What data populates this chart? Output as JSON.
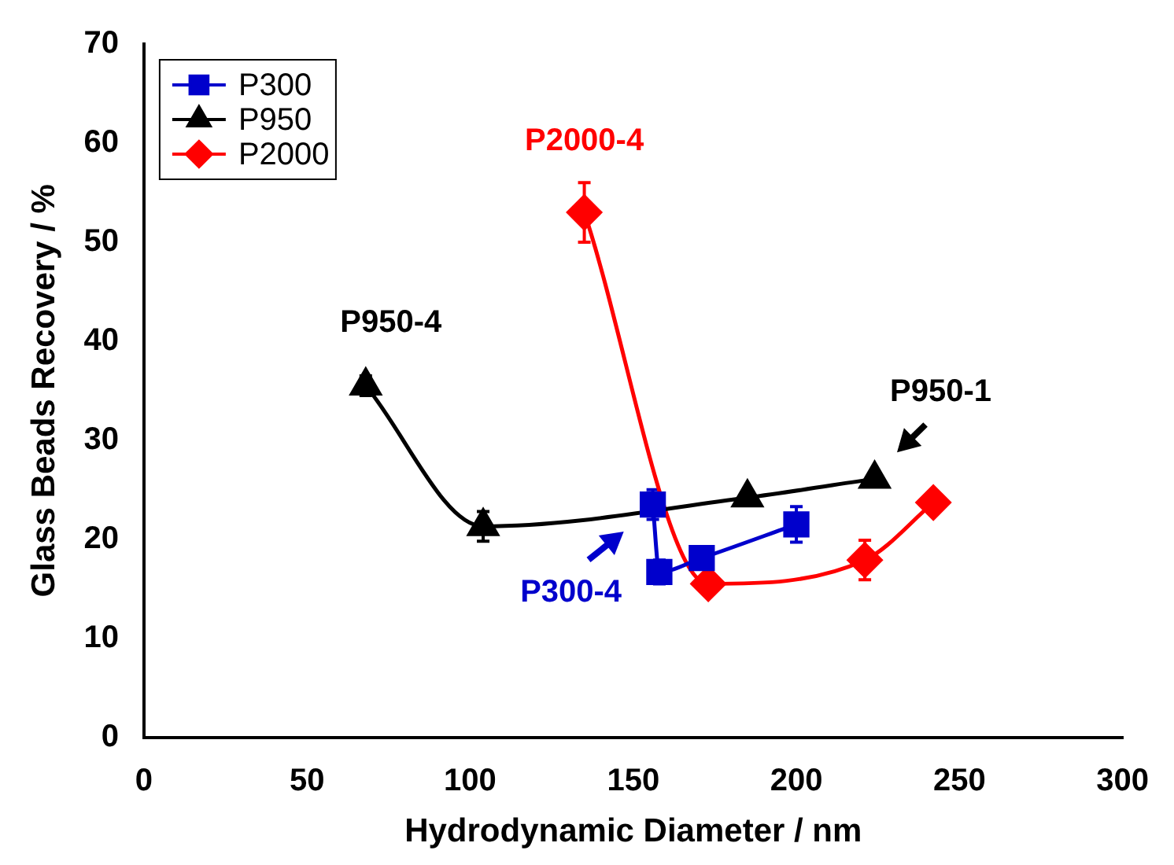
{
  "chart_data": {
    "type": "line",
    "xlabel": "Hydrodynamic Diameter / nm",
    "ylabel": "Glass Beads Recovery / %",
    "xlim": [
      0,
      300
    ],
    "xticks": [
      0,
      50,
      100,
      150,
      200,
      250,
      300
    ],
    "ylim": [
      0,
      70
    ],
    "yticks": [
      0,
      10,
      20,
      30,
      40,
      50,
      60,
      70
    ],
    "grid": false,
    "legend": "top left",
    "line_style": "solid",
    "series": [
      {
        "name": "P300",
        "color": "#0000cc",
        "marker": "square",
        "x": [
          156,
          158,
          171,
          200
        ],
        "values": [
          23.5,
          16.7,
          18.1,
          21.5
        ],
        "errors": [
          1.5,
          1.2,
          null,
          1.8
        ]
      },
      {
        "name": "P950",
        "color": "#000000",
        "marker": "triangle",
        "x": [
          68,
          104,
          185,
          224
        ],
        "values": [
          35.5,
          21.3,
          24.2,
          26.1
        ],
        "errors": [
          1,
          1.5,
          null,
          null
        ]
      },
      {
        "name": "P2000",
        "color": "#ff0000",
        "marker": "diamond",
        "x": [
          135,
          173,
          221,
          242
        ],
        "values": [
          53,
          15.5,
          17.9,
          23.7
        ],
        "errors": [
          3,
          null,
          2,
          null
        ]
      }
    ],
    "annotations": [
      {
        "text": "P950-4",
        "x": 68,
        "y": 35.5
      },
      {
        "text": "P2000-4",
        "x": 135,
        "y": 53
      },
      {
        "text": "P950-1",
        "x": 224,
        "y": 26.1
      },
      {
        "text": "P300-4",
        "x": 156,
        "y": 23.5
      }
    ]
  }
}
